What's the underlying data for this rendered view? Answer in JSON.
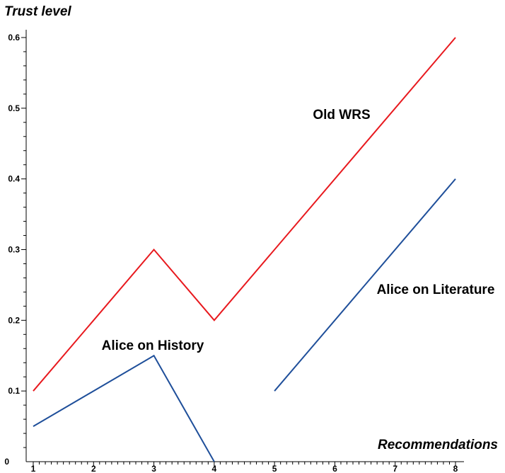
{
  "chart_data": {
    "type": "line",
    "title": "",
    "xlabel": "Recommendations",
    "ylabel": "Trust level",
    "xlim": [
      1,
      8
    ],
    "ylim": [
      0,
      0.6
    ],
    "x_ticks": [
      "1",
      "2",
      "3",
      "4",
      "5",
      "6",
      "7",
      "8"
    ],
    "y_ticks": [
      "0.1",
      "0.2",
      "0.3",
      "0.4",
      "0.5",
      "0.6"
    ],
    "y_zero_label": "0",
    "grid": false,
    "legend": "none",
    "series": [
      {
        "name": "Old WRS",
        "color": "#e8191e",
        "x": [
          1,
          3,
          4,
          8
        ],
        "y": [
          0.1,
          0.3,
          0.2,
          0.6
        ]
      },
      {
        "name": "Alice on History",
        "color": "#1f4f9a",
        "x": [
          1,
          3,
          4
        ],
        "y": [
          0.05,
          0.15,
          0.0
        ]
      },
      {
        "name": "Alice on Literature",
        "color": "#1f4f9a",
        "x": [
          5,
          8
        ],
        "y": [
          0.1,
          0.4
        ]
      }
    ]
  }
}
